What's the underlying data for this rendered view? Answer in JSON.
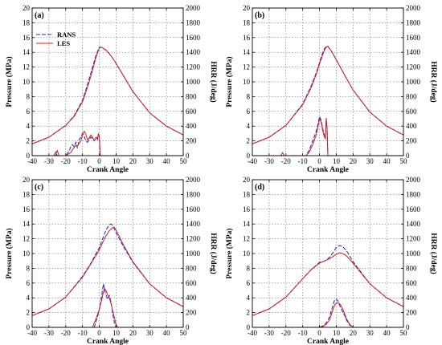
{
  "chart_data": [
    {
      "type": "line",
      "panel_label": "(a)",
      "xlabel": "Crank Angle",
      "ylabel_left": "Pressure (MPa)",
      "ylabel_right": "HRR (J/deg)",
      "xlim": [
        -40,
        50
      ],
      "ylim_left": [
        0,
        20
      ],
      "ylim_right": [
        0,
        2000
      ],
      "x_ticks": [
        "-40",
        "-30",
        "-20",
        "-10",
        "0",
        "10",
        "20",
        "30",
        "40",
        "50"
      ],
      "y_ticks_left": [
        "0",
        "2",
        "4",
        "6",
        "8",
        "10",
        "12",
        "14",
        "16",
        "18",
        "20"
      ],
      "y_ticks_right": [
        "0",
        "200",
        "400",
        "600",
        "800",
        "1000",
        "1200",
        "1400",
        "1600",
        "1800",
        "2000"
      ],
      "grid": true,
      "legend": {
        "position": "top-left",
        "entries": [
          "RANS",
          "LES"
        ]
      },
      "series": [
        {
          "name": "RANS",
          "axis": "left",
          "color": "#2020cc",
          "dash": "dashed",
          "x": [
            -40,
            -30,
            -20,
            -15,
            -10,
            -8,
            -6,
            -4,
            -2,
            0,
            1,
            2,
            4,
            6,
            8,
            10,
            15,
            20,
            30,
            40,
            50
          ],
          "y": [
            1.6,
            2.5,
            4.1,
            5.4,
            7.5,
            8.9,
            10.4,
            12.0,
            13.6,
            14.7,
            14.7,
            14.6,
            14.3,
            13.8,
            13.2,
            12.5,
            10.6,
            8.7,
            5.8,
            4.0,
            2.8
          ]
        },
        {
          "name": "LES",
          "axis": "left",
          "color": "#cc2020",
          "dash": "solid",
          "x": [
            -40,
            -30,
            -20,
            -15,
            -10,
            -8,
            -6,
            -4,
            -2,
            0,
            1,
            2,
            4,
            6,
            8,
            10,
            15,
            20,
            30,
            40,
            50
          ],
          "y": [
            1.6,
            2.5,
            4.1,
            5.3,
            7.3,
            8.6,
            10.0,
            11.6,
            13.3,
            14.6,
            14.7,
            14.6,
            14.3,
            13.8,
            13.2,
            12.5,
            10.6,
            8.7,
            5.8,
            4.0,
            2.8
          ]
        },
        {
          "name": "RANS",
          "axis": "right",
          "color": "#2020cc",
          "dash": "dashed",
          "x": [
            -40,
            -27,
            -26,
            -25,
            -20,
            -18,
            -17,
            -16,
            -15,
            -14,
            -13,
            -12,
            -11,
            -10,
            -9,
            -8,
            -7,
            -6,
            -5,
            -4,
            -3,
            -2,
            -1,
            -0.5,
            0,
            0.5,
            1,
            10,
            20,
            30,
            40,
            50
          ],
          "y": [
            0,
            0,
            50,
            0,
            0,
            60,
            120,
            150,
            120,
            180,
            100,
            220,
            250,
            300,
            260,
            200,
            180,
            220,
            250,
            230,
            200,
            240,
            220,
            280,
            260,
            20,
            0,
            0,
            0,
            0,
            0,
            0
          ]
        },
        {
          "name": "LES",
          "axis": "right",
          "color": "#cc2020",
          "dash": "solid",
          "x": [
            -40,
            -26,
            -25,
            -24,
            -20,
            -17,
            -16,
            -15,
            -14,
            -13,
            -12,
            -11,
            -10,
            -9,
            -8,
            -7,
            -6,
            -5,
            -4,
            -3,
            -2,
            -1,
            -0.5,
            0,
            0.5,
            1,
            10,
            20,
            30,
            40,
            50
          ],
          "y": [
            0,
            0,
            70,
            0,
            0,
            40,
            80,
            110,
            140,
            130,
            170,
            200,
            280,
            330,
            290,
            210,
            240,
            280,
            250,
            200,
            250,
            240,
            300,
            250,
            20,
            0,
            0,
            0,
            0,
            0,
            0
          ]
        }
      ]
    },
    {
      "type": "line",
      "panel_label": "(b)",
      "xlabel": "Crank Angle",
      "ylabel_left": "Pressure (MPa)",
      "ylabel_right": "HRR (J/deg)",
      "xlim": [
        -40,
        50
      ],
      "ylim_left": [
        0,
        20
      ],
      "ylim_right": [
        0,
        2000
      ],
      "x_ticks": [
        "-40",
        "-30",
        "-20",
        "-10",
        "0",
        "10",
        "20",
        "30",
        "40",
        "50"
      ],
      "y_ticks_left": [
        "0",
        "2",
        "4",
        "6",
        "8",
        "10",
        "12",
        "14",
        "16",
        "18",
        "20"
      ],
      "y_ticks_right": [
        "0",
        "200",
        "400",
        "600",
        "800",
        "1000",
        "1200",
        "1400",
        "1600",
        "1800",
        "2000"
      ],
      "grid": true,
      "series": [
        {
          "name": "RANS",
          "axis": "left",
          "color": "#2020cc",
          "dash": "dashed",
          "x": [
            -40,
            -30,
            -20,
            -10,
            -5,
            -2,
            0,
            2,
            3,
            4,
            5,
            7,
            10,
            15,
            20,
            30,
            40,
            50
          ],
          "y": [
            1.6,
            2.5,
            4.1,
            7.0,
            9.4,
            11.2,
            12.6,
            14.0,
            14.5,
            14.8,
            14.8,
            14.2,
            13.0,
            10.9,
            8.9,
            5.9,
            4.0,
            2.8
          ]
        },
        {
          "name": "LES",
          "axis": "left",
          "color": "#cc2020",
          "dash": "solid",
          "x": [
            -40,
            -30,
            -20,
            -10,
            -5,
            -2,
            0,
            2,
            3,
            4,
            5,
            7,
            10,
            15,
            20,
            30,
            40,
            50
          ],
          "y": [
            1.6,
            2.5,
            4.1,
            6.9,
            9.2,
            11.0,
            12.4,
            13.7,
            14.3,
            14.7,
            14.8,
            14.2,
            13.0,
            10.9,
            8.9,
            5.9,
            4.0,
            2.8
          ]
        },
        {
          "name": "RANS",
          "axis": "right",
          "color": "#2020cc",
          "dash": "dashed",
          "x": [
            -40,
            -8,
            -6,
            -4,
            -2,
            -1,
            0,
            1,
            2,
            3,
            3.5,
            4,
            4.5,
            5,
            10,
            20,
            30,
            40,
            50
          ],
          "y": [
            0,
            0,
            80,
            200,
            330,
            420,
            530,
            480,
            360,
            270,
            240,
            480,
            380,
            0,
            0,
            0,
            0,
            0,
            0
          ]
        },
        {
          "name": "LES",
          "axis": "right",
          "color": "#cc2020",
          "dash": "solid",
          "x": [
            -40,
            -23,
            -22,
            -21,
            -8,
            -6,
            -4,
            -2,
            -1,
            0,
            1,
            2,
            3,
            3.5,
            4,
            4.5,
            5,
            10,
            20,
            30,
            40,
            50
          ],
          "y": [
            0,
            0,
            40,
            0,
            0,
            50,
            150,
            280,
            380,
            500,
            460,
            330,
            250,
            230,
            510,
            360,
            0,
            0,
            0,
            0,
            0,
            0
          ]
        }
      ]
    },
    {
      "type": "line",
      "panel_label": "(c)",
      "xlabel": "Crank Angle",
      "ylabel_left": "Pressure (MPa)",
      "ylabel_right": "HRR (J/deg)",
      "xlim": [
        -40,
        50
      ],
      "ylim_left": [
        0,
        20
      ],
      "ylim_right": [
        0,
        2000
      ],
      "x_ticks": [
        "-40",
        "-30",
        "-20",
        "-10",
        "0",
        "10",
        "20",
        "30",
        "40",
        "50"
      ],
      "y_ticks_left": [
        "0",
        "2",
        "4",
        "6",
        "8",
        "10",
        "12",
        "14",
        "16",
        "18",
        "20"
      ],
      "y_ticks_right": [
        "0",
        "200",
        "400",
        "600",
        "800",
        "1000",
        "1200",
        "1400",
        "1600",
        "1800",
        "2000"
      ],
      "grid": true,
      "series": [
        {
          "name": "RANS",
          "axis": "left",
          "color": "#2020cc",
          "dash": "dashed",
          "x": [
            -40,
            -30,
            -20,
            -10,
            -5,
            0,
            2,
            4,
            6,
            7,
            8,
            10,
            15,
            20,
            30,
            40,
            50
          ],
          "y": [
            1.6,
            2.5,
            4.1,
            6.9,
            8.7,
            10.8,
            12.0,
            13.2,
            13.9,
            14.0,
            13.8,
            12.8,
            10.7,
            8.8,
            5.9,
            4.0,
            2.8
          ]
        },
        {
          "name": "LES",
          "axis": "left",
          "color": "#cc2020",
          "dash": "solid",
          "x": [
            -40,
            -30,
            -20,
            -10,
            -5,
            0,
            2,
            4,
            6,
            8,
            9,
            10,
            15,
            20,
            30,
            40,
            50
          ],
          "y": [
            1.6,
            2.5,
            4.1,
            6.8,
            8.6,
            10.5,
            11.5,
            12.4,
            13.1,
            13.5,
            13.5,
            13.2,
            10.9,
            8.9,
            5.9,
            4.0,
            2.8
          ]
        },
        {
          "name": "RANS",
          "axis": "right",
          "color": "#2020cc",
          "dash": "dashed",
          "x": [
            -40,
            -3,
            -2,
            -1,
            0,
            1,
            2,
            2.5,
            3,
            4,
            5,
            6,
            7,
            8,
            9,
            10,
            20,
            30,
            40,
            50
          ],
          "y": [
            0,
            0,
            80,
            150,
            240,
            360,
            520,
            590,
            520,
            440,
            380,
            430,
            340,
            180,
            60,
            0,
            0,
            0,
            0,
            0
          ]
        },
        {
          "name": "LES",
          "axis": "right",
          "color": "#cc2020",
          "dash": "solid",
          "x": [
            -40,
            -4,
            -3,
            -2,
            -1,
            0,
            1,
            2,
            3,
            4,
            5,
            6,
            7,
            8,
            9,
            10,
            11,
            20,
            30,
            40,
            50
          ],
          "y": [
            0,
            0,
            60,
            110,
            180,
            240,
            330,
            430,
            530,
            500,
            440,
            400,
            320,
            220,
            130,
            40,
            0,
            0,
            0,
            0,
            0
          ]
        }
      ]
    },
    {
      "type": "line",
      "panel_label": "(d)",
      "xlabel": "Crank Angle",
      "ylabel_left": "Pressure (MPa)",
      "ylabel_right": "HRR (J/deg)",
      "xlim": [
        -40,
        50
      ],
      "ylim_left": [
        0,
        20
      ],
      "ylim_right": [
        0,
        2000
      ],
      "x_ticks": [
        "-40",
        "-30",
        "-20",
        "-10",
        "0",
        "10",
        "20",
        "30",
        "40",
        "50"
      ],
      "y_ticks_left": [
        "0",
        "2",
        "4",
        "6",
        "8",
        "10",
        "12",
        "14",
        "16",
        "18",
        "20"
      ],
      "y_ticks_right": [
        "0",
        "200",
        "400",
        "600",
        "800",
        "1000",
        "1200",
        "1400",
        "1600",
        "1800",
        "2000"
      ],
      "grid": true,
      "series": [
        {
          "name": "RANS",
          "axis": "left",
          "color": "#2020cc",
          "dash": "dashed",
          "x": [
            -40,
            -30,
            -20,
            -10,
            -5,
            0,
            2,
            4,
            6,
            8,
            10,
            12,
            14,
            16,
            20,
            30,
            40,
            50
          ],
          "y": [
            1.6,
            2.5,
            4.1,
            6.6,
            7.8,
            8.8,
            8.9,
            9.1,
            9.5,
            10.1,
            10.8,
            11.1,
            10.9,
            10.4,
            8.9,
            5.9,
            4.0,
            2.8
          ]
        },
        {
          "name": "LES",
          "axis": "left",
          "color": "#cc2020",
          "dash": "solid",
          "x": [
            -40,
            -30,
            -20,
            -10,
            -5,
            0,
            2,
            4,
            6,
            8,
            10,
            12,
            14,
            16,
            20,
            30,
            40,
            50
          ],
          "y": [
            1.6,
            2.5,
            4.1,
            6.6,
            7.8,
            8.7,
            8.9,
            9.1,
            9.3,
            9.6,
            9.9,
            10.1,
            10.0,
            9.7,
            8.7,
            5.9,
            4.0,
            2.8
          ]
        },
        {
          "name": "RANS",
          "axis": "right",
          "color": "#2020cc",
          "dash": "dashed",
          "x": [
            -40,
            0,
            2,
            4,
            6,
            7,
            8,
            9,
            10,
            11,
            12,
            13,
            14,
            15,
            16,
            18,
            20,
            30,
            40,
            50
          ],
          "y": [
            0,
            0,
            20,
            60,
            140,
            220,
            300,
            370,
            380,
            360,
            300,
            250,
            200,
            160,
            100,
            30,
            0,
            0,
            0,
            0
          ]
        },
        {
          "name": "LES",
          "axis": "right",
          "color": "#cc2020",
          "dash": "solid",
          "x": [
            -40,
            0,
            2,
            4,
            6,
            7,
            8,
            9,
            10,
            11,
            12,
            13,
            14,
            15,
            16,
            18,
            20,
            30,
            40,
            50
          ],
          "y": [
            0,
            0,
            10,
            40,
            100,
            170,
            240,
            300,
            330,
            330,
            320,
            290,
            240,
            180,
            120,
            40,
            0,
            0,
            0,
            0
          ]
        }
      ]
    }
  ]
}
